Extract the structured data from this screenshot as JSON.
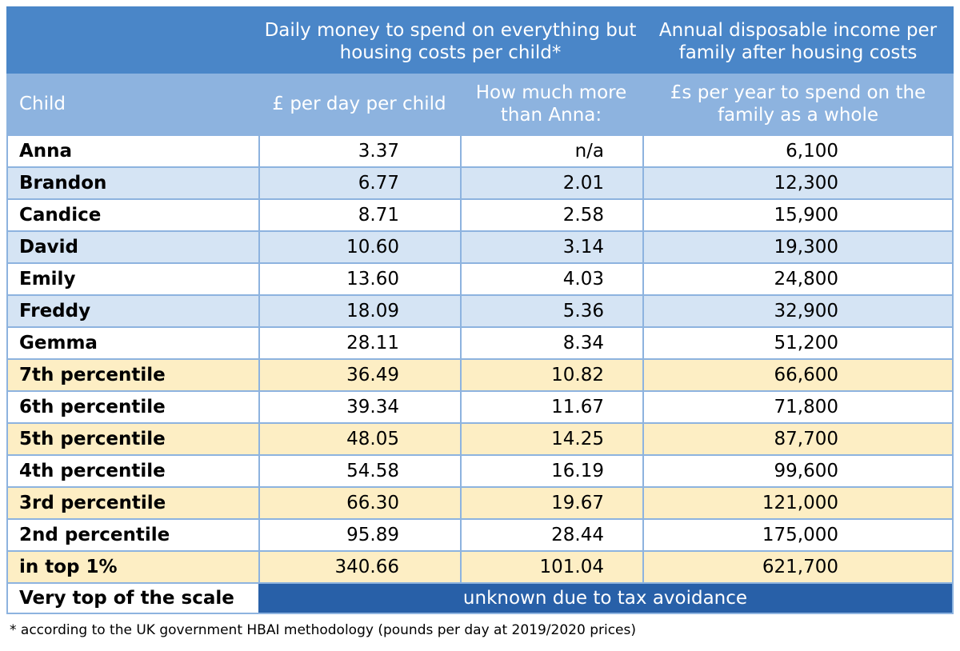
{
  "header": {
    "group_row": [
      {
        "label": ""
      },
      {
        "label": "Daily money to spend on everything but housing costs per child*"
      },
      {
        "label": "Annual disposable income per family after housing costs"
      }
    ],
    "column_row": [
      {
        "label": "Child"
      },
      {
        "label": "£ per day per child"
      },
      {
        "label": "How much more than Anna:"
      },
      {
        "label": "£s per year to spend on the family as a whole"
      }
    ]
  },
  "rows": [
    {
      "name": "Anna",
      "per_day": "3.37",
      "more_than_anna": "n/a",
      "annual": "6,100",
      "shade": "white"
    },
    {
      "name": "Brandon",
      "per_day": "6.77",
      "more_than_anna": "2.01",
      "annual": "12,300",
      "shade": "blue"
    },
    {
      "name": "Candice",
      "per_day": "8.71",
      "more_than_anna": "2.58",
      "annual": "15,900",
      "shade": "white"
    },
    {
      "name": "David",
      "per_day": "10.60",
      "more_than_anna": "3.14",
      "annual": "19,300",
      "shade": "blue"
    },
    {
      "name": "Emily",
      "per_day": "13.60",
      "more_than_anna": "4.03",
      "annual": "24,800",
      "shade": "white"
    },
    {
      "name": "Freddy",
      "per_day": "18.09",
      "more_than_anna": "5.36",
      "annual": "32,900",
      "shade": "blue"
    },
    {
      "name": "Gemma",
      "per_day": "28.11",
      "more_than_anna": "8.34",
      "annual": "51,200",
      "shade": "white"
    },
    {
      "name": "7th percentile",
      "per_day": "36.49",
      "more_than_anna": "10.82",
      "annual": "66,600",
      "shade": "yellow"
    },
    {
      "name": "6th percentile",
      "per_day": "39.34",
      "more_than_anna": "11.67",
      "annual": "71,800",
      "shade": "white"
    },
    {
      "name": "5th percentile",
      "per_day": "48.05",
      "more_than_anna": "14.25",
      "annual": "87,700",
      "shade": "yellow"
    },
    {
      "name": "4th percentile",
      "per_day": "54.58",
      "more_than_anna": "16.19",
      "annual": "99,600",
      "shade": "white"
    },
    {
      "name": "3rd percentile",
      "per_day": "66.30",
      "more_than_anna": "19.67",
      "annual": "121,000",
      "shade": "yellow"
    },
    {
      "name": "2nd percentile",
      "per_day": "95.89",
      "more_than_anna": "28.44",
      "annual": "175,000",
      "shade": "white"
    },
    {
      "name": "in top 1%",
      "per_day": "340.66",
      "more_than_anna": "101.04",
      "annual": "621,700",
      "shade": "yellow"
    }
  ],
  "last_row": {
    "name": "Very top of the scale",
    "note": "unknown due to tax avoidance"
  },
  "footnote": "* according to the UK government HBAI methodology (pounds per day at 2019/2020 prices)",
  "colors": {
    "header_dark": "#4a86c8",
    "header_light": "#8db3df",
    "row_blue": "#d5e4f4",
    "row_yellow": "#fdeec4",
    "highlight": "#2860a8"
  }
}
